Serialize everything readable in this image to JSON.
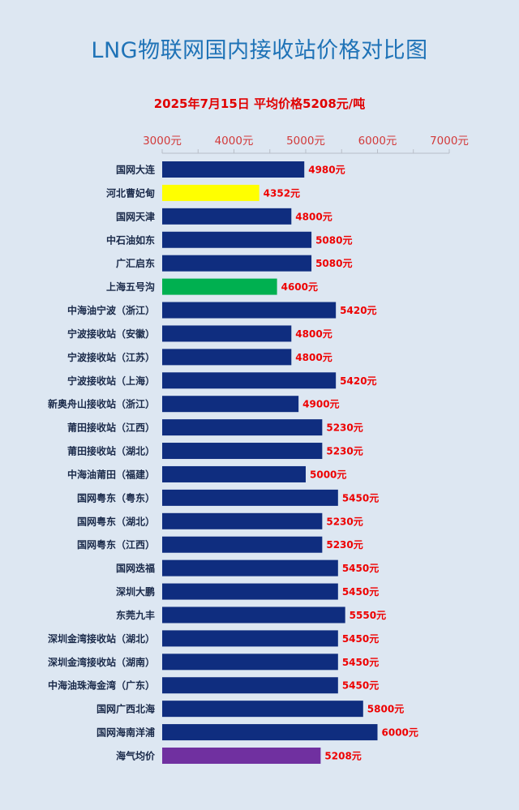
{
  "title": "LNG物联网国内接收站价格对比图",
  "subtitle": "2025年7月15日 平均价格5208元/吨",
  "chart_data": {
    "type": "bar",
    "orientation": "horizontal",
    "title": "LNG物联网国内接收站价格对比图",
    "subtitle": "2025年7月15日 平均价格5208元/吨",
    "xlim": [
      3000,
      7000
    ],
    "ticks": [
      {
        "value": 3000,
        "label": "3000元"
      },
      {
        "value": 4000,
        "label": "4000元"
      },
      {
        "value": 5000,
        "label": "5000元"
      },
      {
        "value": 6000,
        "label": "6000元"
      },
      {
        "value": 7000,
        "label": "7000元"
      }
    ],
    "unit_suffix": "元",
    "default_color": "#0f2d7f",
    "categories": [
      "国网大连",
      "河北曹妃甸",
      "国网天津",
      "中石油如东",
      "广汇启东",
      "上海五号沟",
      "中海油宁波（浙江）",
      "宁波接收站（安徽）",
      "宁波接收站（江苏）",
      "宁波接收站（上海）",
      "新奥舟山接收站（浙江）",
      "莆田接收站（江西）",
      "莆田接收站（湖北）",
      "中海油莆田（福建）",
      "国网粤东（粤东）",
      "国网粤东（湖北）",
      "国网粤东（江西）",
      "国网迭福",
      "深圳大鹏",
      "东莞九丰",
      "深圳金湾接收站（湖北）",
      "深圳金湾接收站（湖南）",
      "中海油珠海金湾（广东）",
      "国网广西北海",
      "国网海南洋浦",
      "海气均价"
    ],
    "values": [
      4980,
      4352,
      4800,
      5080,
      5080,
      4600,
      5420,
      4800,
      4800,
      5420,
      4900,
      5230,
      5230,
      5000,
      5450,
      5230,
      5230,
      5450,
      5450,
      5550,
      5450,
      5450,
      5450,
      5800,
      6000,
      5208
    ],
    "colors": [
      "#0f2d7f",
      "#ffff00",
      "#0f2d7f",
      "#0f2d7f",
      "#0f2d7f",
      "#00b050",
      "#0f2d7f",
      "#0f2d7f",
      "#0f2d7f",
      "#0f2d7f",
      "#0f2d7f",
      "#0f2d7f",
      "#0f2d7f",
      "#0f2d7f",
      "#0f2d7f",
      "#0f2d7f",
      "#0f2d7f",
      "#0f2d7f",
      "#0f2d7f",
      "#0f2d7f",
      "#0f2d7f",
      "#0f2d7f",
      "#0f2d7f",
      "#0f2d7f",
      "#0f2d7f",
      "#7030a0"
    ],
    "value_labels": [
      "4980元",
      "4352元",
      "4800元",
      "5080元",
      "5080元",
      "4600元",
      "5420元",
      "4800元",
      "4800元",
      "5420元",
      "4900元",
      "5230元",
      "5230元",
      "5000元",
      "5450元",
      "5230元",
      "5230元",
      "5450元",
      "5450元",
      "5550元",
      "5450元",
      "5450元",
      "5450元",
      "5800元",
      "6000元",
      "5208元"
    ]
  }
}
